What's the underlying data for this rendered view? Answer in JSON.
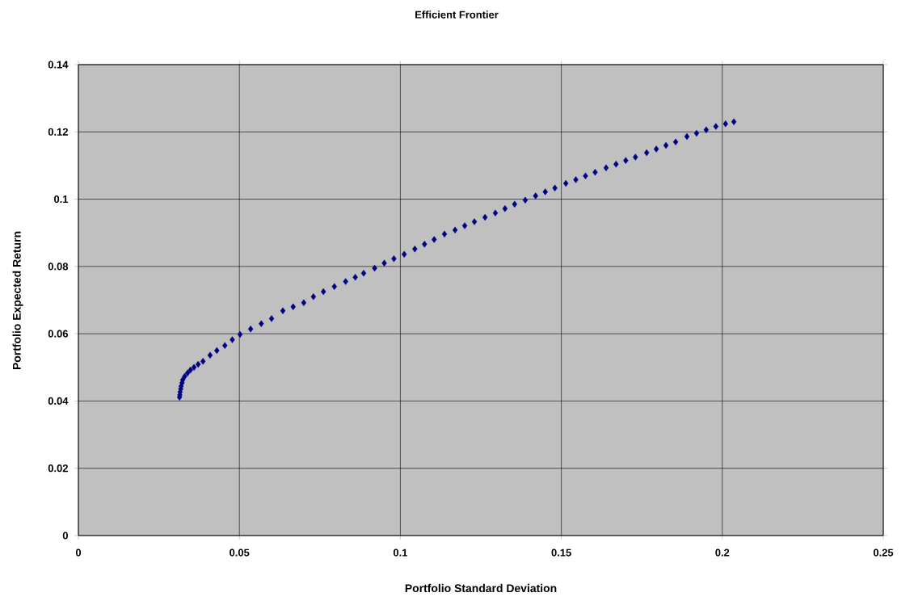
{
  "chart_data": {
    "type": "scatter",
    "title": "Efficient Frontier",
    "xlabel": "Portfolio Standard Deviation",
    "ylabel": "Portfolio Expected Return",
    "x": [
      0.0314,
      0.0315,
      0.0316,
      0.0318,
      0.0319,
      0.0322,
      0.0324,
      0.033,
      0.0339,
      0.0348,
      0.0359,
      0.0372,
      0.0387,
      0.0409,
      0.043,
      0.0455,
      0.0478,
      0.0502,
      0.0535,
      0.0568,
      0.06,
      0.0635,
      0.0667,
      0.07,
      0.073,
      0.0761,
      0.0795,
      0.083,
      0.086,
      0.0886,
      0.092,
      0.095,
      0.098,
      0.1012,
      0.1045,
      0.1075,
      0.1105,
      0.1137,
      0.117,
      0.12,
      0.123,
      0.1263,
      0.1295,
      0.1325,
      0.1355,
      0.1388,
      0.142,
      0.145,
      0.148,
      0.1514,
      0.1545,
      0.1575,
      0.1605,
      0.1639,
      0.167,
      0.17,
      0.173,
      0.1765,
      0.1795,
      0.1825,
      0.1855,
      0.189,
      0.192,
      0.195,
      0.198,
      0.201,
      0.2036
    ],
    "values": [
      0.0411,
      0.0418,
      0.0427,
      0.0436,
      0.0444,
      0.0454,
      0.0463,
      0.0473,
      0.0483,
      0.0492,
      0.05,
      0.0509,
      0.0518,
      0.0536,
      0.055,
      0.0565,
      0.0582,
      0.0598,
      0.0614,
      0.063,
      0.0645,
      0.0668,
      0.068,
      0.0692,
      0.071,
      0.0725,
      0.074,
      0.0755,
      0.0768,
      0.078,
      0.0795,
      0.081,
      0.0823,
      0.0836,
      0.0852,
      0.0866,
      0.088,
      0.0896,
      0.0908,
      0.0921,
      0.0933,
      0.0946,
      0.0959,
      0.0972,
      0.0985,
      0.0997,
      0.101,
      0.1022,
      0.1033,
      0.1047,
      0.1058,
      0.1069,
      0.108,
      0.1093,
      0.1104,
      0.1115,
      0.1125,
      0.1138,
      0.1149,
      0.116,
      0.117,
      0.1186,
      0.1196,
      0.1206,
      0.1216,
      0.1224,
      0.123
    ],
    "color": "#000080",
    "marker": "diamond",
    "grid": true,
    "xlim": [
      0,
      0.25
    ],
    "ylim": [
      0,
      0.14
    ],
    "xticks": [
      0,
      0.05,
      0.1,
      0.15,
      0.2,
      0.25
    ],
    "yticks": [
      0,
      0.02,
      0.04,
      0.06,
      0.08,
      0.1,
      0.12,
      0.14
    ]
  }
}
